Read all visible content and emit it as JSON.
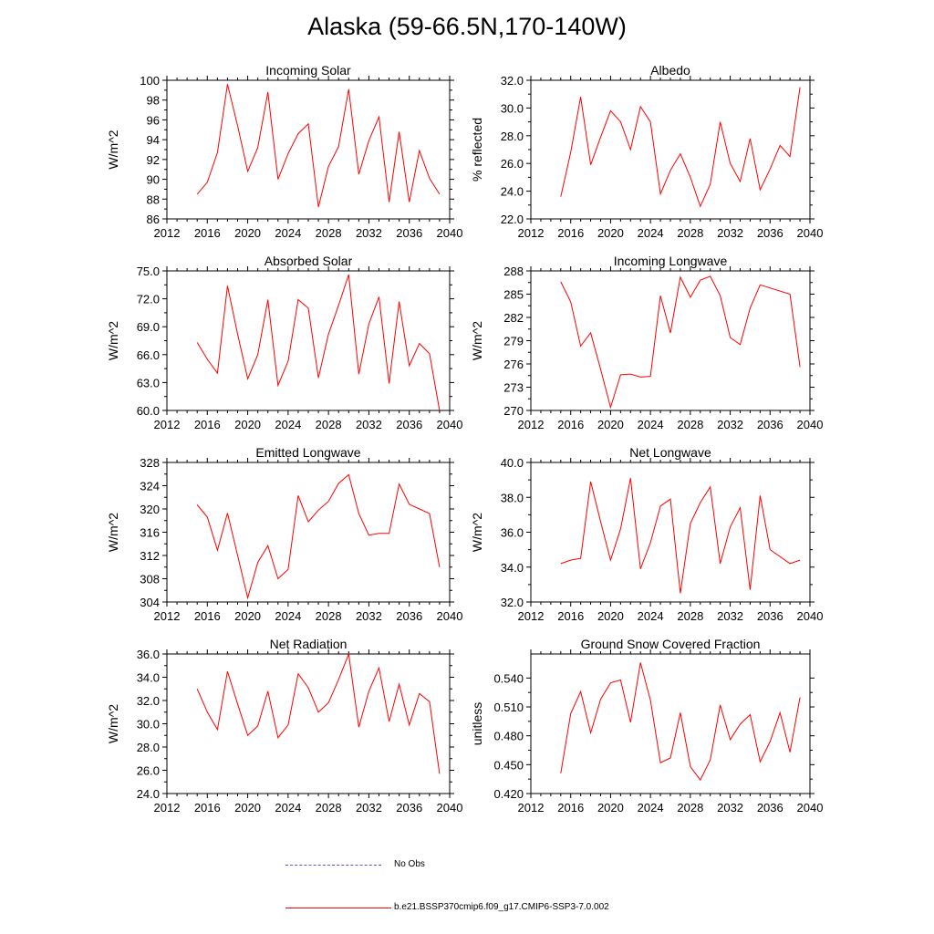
{
  "title": "Alaska (59-66.5N,170-140W)",
  "chart_data": [
    {
      "type": "line",
      "title": "Incoming Solar",
      "ylabel": "W/m^2",
      "xlim": [
        2012,
        2040
      ],
      "ylim": [
        86,
        100
      ],
      "xticks": [
        "2012",
        "2016",
        "2020",
        "2024",
        "2028",
        "2032",
        "2036",
        "2040"
      ],
      "yticks": [
        "86",
        "88",
        "90",
        "92",
        "94",
        "96",
        "98",
        "100"
      ],
      "series": [
        {
          "color": "#ff0000",
          "x": [
            2015,
            2016,
            2017,
            2018,
            2019,
            2020,
            2021,
            2022,
            2023,
            2024,
            2025,
            2026,
            2027,
            2028,
            2029,
            2030,
            2031,
            2032,
            2033,
            2034,
            2035,
            2036,
            2037,
            2038,
            2039
          ],
          "y": [
            88.5,
            89.7,
            92.7,
            99.6,
            95.4,
            90.8,
            93.2,
            98.8,
            90.0,
            92.6,
            94.6,
            95.6,
            87.2,
            91.3,
            93.3,
            99.1,
            90.5,
            93.9,
            96.3,
            87.7,
            94.8,
            87.7,
            92.9,
            90.1,
            88.5
          ]
        }
      ]
    },
    {
      "type": "line",
      "title": "Albedo",
      "ylabel": "% reflected",
      "xlim": [
        2012,
        2040
      ],
      "ylim": [
        22,
        32
      ],
      "xticks": [
        "2012",
        "2016",
        "2020",
        "2024",
        "2028",
        "2032",
        "2036",
        "2040"
      ],
      "yticks": [
        "22.0",
        "24.0",
        "26.0",
        "28.0",
        "30.0",
        "32.0"
      ],
      "series": [
        {
          "color": "#ff0000",
          "x": [
            2015,
            2016,
            2017,
            2018,
            2019,
            2020,
            2021,
            2022,
            2023,
            2024,
            2025,
            2026,
            2027,
            2028,
            2029,
            2030,
            2031,
            2032,
            2033,
            2034,
            2035,
            2036,
            2037,
            2038,
            2039
          ],
          "y": [
            23.6,
            26.8,
            30.8,
            25.9,
            27.9,
            29.8,
            29.0,
            27.0,
            30.1,
            29.0,
            23.8,
            25.5,
            26.7,
            25.0,
            22.9,
            24.5,
            29.0,
            26.0,
            24.7,
            27.8,
            24.1,
            25.6,
            27.3,
            26.5,
            31.5
          ]
        }
      ]
    },
    {
      "type": "line",
      "title": "Absorbed Solar",
      "ylabel": "W/m^2",
      "xlim": [
        2012,
        2040
      ],
      "ylim": [
        60,
        75
      ],
      "xticks": [
        "2012",
        "2016",
        "2020",
        "2024",
        "2028",
        "2032",
        "2036",
        "2040"
      ],
      "yticks": [
        "60.0",
        "63.0",
        "66.0",
        "69.0",
        "72.0",
        "75.0"
      ],
      "series": [
        {
          "color": "#ff0000",
          "x": [
            2015,
            2016,
            2017,
            2018,
            2019,
            2020,
            2021,
            2022,
            2023,
            2024,
            2025,
            2026,
            2027,
            2028,
            2029,
            2030,
            2031,
            2032,
            2033,
            2034,
            2035,
            2036,
            2037,
            2038,
            2039
          ],
          "y": [
            67.3,
            65.5,
            64.0,
            73.4,
            68.2,
            63.4,
            66.0,
            71.9,
            62.7,
            65.3,
            71.9,
            71.0,
            63.5,
            68.2,
            71.3,
            74.6,
            63.9,
            69.3,
            72.2,
            62.9,
            71.7,
            64.8,
            67.2,
            66.1,
            60.0
          ]
        }
      ]
    },
    {
      "type": "line",
      "title": "Incoming Longwave",
      "ylabel": "W/m^2",
      "xlim": [
        2012,
        2040
      ],
      "ylim": [
        270,
        288
      ],
      "xticks": [
        "2012",
        "2016",
        "2020",
        "2024",
        "2028",
        "2032",
        "2036",
        "2040"
      ],
      "yticks": [
        "270",
        "273",
        "276",
        "279",
        "282",
        "285",
        "288"
      ],
      "series": [
        {
          "color": "#ff0000",
          "x": [
            2015,
            2016,
            2017,
            2018,
            2019,
            2020,
            2021,
            2022,
            2023,
            2024,
            2025,
            2026,
            2027,
            2028,
            2029,
            2030,
            2031,
            2032,
            2033,
            2034,
            2035,
            2038,
            2039
          ],
          "y": [
            286.6,
            284.0,
            278.3,
            280.0,
            275.3,
            270.4,
            274.6,
            274.7,
            274.3,
            274.4,
            284.8,
            280.0,
            287.2,
            284.6,
            286.8,
            287.3,
            284.8,
            279.4,
            278.5,
            283.2,
            286.2,
            285.0,
            275.6
          ]
        }
      ]
    },
    {
      "type": "line",
      "title": "Emitted Longwave",
      "ylabel": "W/m^2",
      "xlim": [
        2012,
        2040
      ],
      "ylim": [
        304,
        328
      ],
      "xticks": [
        "2012",
        "2016",
        "2020",
        "2024",
        "2028",
        "2032",
        "2036",
        "2040"
      ],
      "yticks": [
        "304",
        "308",
        "312",
        "316",
        "320",
        "324",
        "328"
      ],
      "series": [
        {
          "color": "#ff0000",
          "x": [
            2015,
            2016,
            2017,
            2018,
            2019,
            2020,
            2021,
            2022,
            2023,
            2024,
            2025,
            2026,
            2027,
            2028,
            2029,
            2030,
            2031,
            2032,
            2033,
            2034,
            2035,
            2036,
            2037,
            2038,
            2039
          ],
          "y": [
            320.7,
            318.6,
            312.9,
            319.3,
            312.0,
            304.7,
            310.8,
            313.7,
            308.0,
            309.6,
            322.3,
            317.8,
            319.8,
            321.3,
            324.4,
            325.9,
            319.2,
            315.5,
            315.8,
            315.8,
            324.3,
            320.8,
            320.0,
            319.2,
            310.0
          ]
        }
      ]
    },
    {
      "type": "line",
      "title": "Net Longwave",
      "ylabel": "W/m^2",
      "xlim": [
        2012,
        2040
      ],
      "ylim": [
        32,
        40
      ],
      "xticks": [
        "2012",
        "2016",
        "2020",
        "2024",
        "2028",
        "2032",
        "2036",
        "2040"
      ],
      "yticks": [
        "32.0",
        "34.0",
        "36.0",
        "38.0",
        "40.0"
      ],
      "series": [
        {
          "color": "#ff0000",
          "x": [
            2015,
            2016,
            2017,
            2018,
            2019,
            2020,
            2021,
            2022,
            2023,
            2024,
            2025,
            2026,
            2027,
            2028,
            2029,
            2030,
            2031,
            2032,
            2033,
            2034,
            2035,
            2036,
            2038,
            2039
          ],
          "y": [
            34.2,
            34.4,
            34.5,
            38.9,
            36.6,
            34.4,
            36.2,
            39.1,
            33.9,
            35.4,
            37.5,
            37.9,
            32.5,
            36.5,
            37.7,
            38.6,
            34.2,
            36.3,
            37.4,
            32.7,
            38.1,
            35.0,
            34.2,
            34.4
          ]
        }
      ]
    },
    {
      "type": "line",
      "title": "Net Radiation",
      "ylabel": "W/m^2",
      "xlim": [
        2012,
        2040
      ],
      "ylim": [
        24,
        36
      ],
      "xticks": [
        "2012",
        "2016",
        "2020",
        "2024",
        "2028",
        "2032",
        "2036",
        "2040"
      ],
      "yticks": [
        "24.0",
        "26.0",
        "28.0",
        "30.0",
        "32.0",
        "34.0",
        "36.0"
      ],
      "series": [
        {
          "color": "#ff0000",
          "x": [
            2015,
            2016,
            2017,
            2018,
            2019,
            2020,
            2021,
            2022,
            2023,
            2024,
            2025,
            2026,
            2027,
            2028,
            2029,
            2030,
            2031,
            2032,
            2033,
            2034,
            2035,
            2036,
            2037,
            2038,
            2039
          ],
          "y": [
            33.0,
            31.0,
            29.5,
            34.5,
            31.7,
            29.0,
            29.8,
            32.8,
            28.8,
            29.9,
            34.3,
            33.1,
            31.0,
            31.8,
            33.8,
            36.0,
            29.7,
            32.8,
            34.8,
            30.2,
            33.4,
            29.9,
            32.6,
            31.9,
            25.7
          ]
        }
      ]
    },
    {
      "type": "line",
      "title": "Ground Snow Covered Fraction",
      "ylabel": "unitless",
      "xlim": [
        2012,
        2040
      ],
      "ylim": [
        0.42,
        0.565
      ],
      "xticks": [
        "2012",
        "2016",
        "2020",
        "2024",
        "2028",
        "2032",
        "2036",
        "2040"
      ],
      "yticks": [
        "0.420",
        "0.450",
        "0.480",
        "0.510",
        "0.540"
      ],
      "series": [
        {
          "color": "#ff0000",
          "x": [
            2015,
            2016,
            2017,
            2018,
            2019,
            2020,
            2021,
            2022,
            2023,
            2024,
            2025,
            2026,
            2027,
            2028,
            2029,
            2030,
            2031,
            2032,
            2033,
            2034,
            2035,
            2036,
            2037,
            2038,
            2039
          ],
          "y": [
            0.441,
            0.503,
            0.526,
            0.483,
            0.518,
            0.535,
            0.538,
            0.494,
            0.556,
            0.517,
            0.452,
            0.457,
            0.504,
            0.448,
            0.434,
            0.455,
            0.512,
            0.476,
            0.492,
            0.502,
            0.453,
            0.474,
            0.504,
            0.463,
            0.52
          ]
        }
      ]
    }
  ],
  "legend": [
    {
      "label": "No Obs",
      "color": "#5555cc",
      "style": "dashed"
    },
    {
      "label": "b.e21.BSSP370cmip6.f09_g17.CMIP6-SSP3-7.0.002",
      "color": "#ff0000",
      "style": "solid"
    }
  ]
}
